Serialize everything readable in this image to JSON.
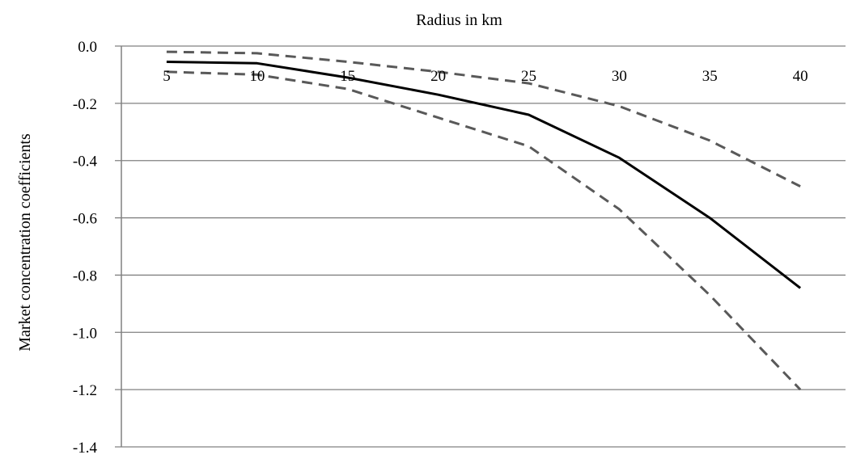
{
  "chart_data": {
    "type": "line",
    "xlabel": "Radius in km",
    "ylabel": "Market concentration coefficients",
    "x": [
      5,
      10,
      15,
      20,
      25,
      30,
      35,
      40
    ],
    "ylim": [
      -1.4,
      0.0
    ],
    "yticks": [
      0.0,
      -0.2,
      -0.4,
      -0.6,
      -0.8,
      -1.0,
      -1.2,
      -1.4
    ],
    "grid": true,
    "legend": "none",
    "series": [
      {
        "style": "solid",
        "color": "#000000",
        "values": [
          -0.055,
          -0.06,
          -0.11,
          -0.17,
          -0.24,
          -0.39,
          -0.6,
          -0.845
        ]
      },
      {
        "style": "dashed",
        "color": "#595959",
        "values": [
          -0.02,
          -0.025,
          -0.055,
          -0.09,
          -0.13,
          -0.21,
          -0.33,
          -0.49
        ]
      },
      {
        "style": "dashed",
        "color": "#595959",
        "values": [
          -0.09,
          -0.1,
          -0.15,
          -0.25,
          -0.35,
          -0.57,
          -0.87,
          -1.2
        ]
      }
    ]
  }
}
